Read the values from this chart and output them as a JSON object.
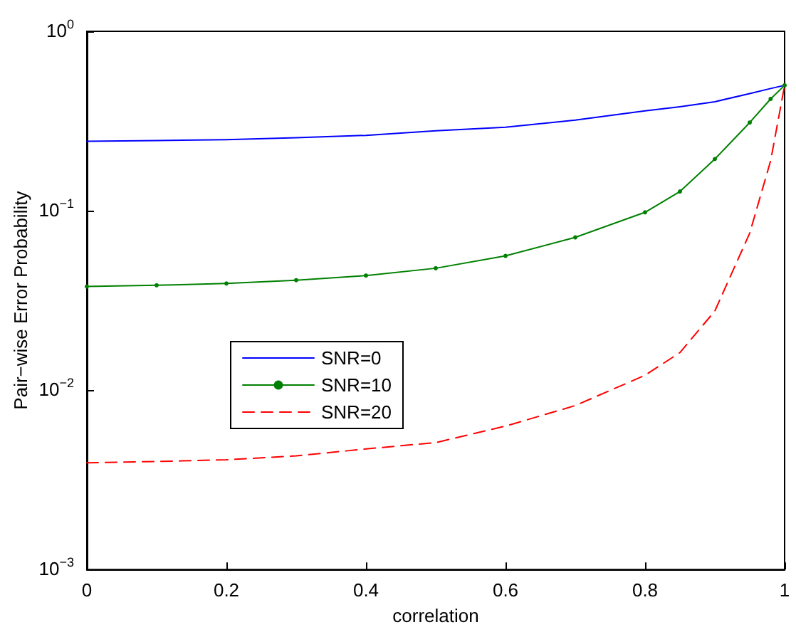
{
  "chart_data": {
    "type": "line",
    "xlabel": "correlation",
    "ylabel": "Pair−wise Error Probability",
    "x": [
      0,
      0.1,
      0.2,
      0.3,
      0.4,
      0.5,
      0.6,
      0.7,
      0.8,
      0.85,
      0.9,
      0.95,
      0.98,
      1
    ],
    "series": [
      {
        "name": "SNR=0",
        "color": "#0000ff",
        "line_style": "solid",
        "marker": "none",
        "values": [
          0.244,
          0.246,
          0.249,
          0.255,
          0.263,
          0.279,
          0.292,
          0.32,
          0.36,
          0.38,
          0.405,
          0.45,
          0.48,
          0.5
        ]
      },
      {
        "name": "SNR=10",
        "color": "#008000",
        "line_style": "solid",
        "marker": "circle",
        "values": [
          0.0378,
          0.0384,
          0.0393,
          0.041,
          0.0435,
          0.0478,
          0.056,
          0.071,
          0.098,
          0.128,
          0.194,
          0.31,
          0.42,
          0.5
        ]
      },
      {
        "name": "SNR=20",
        "color": "#ff0000",
        "line_style": "dashed",
        "marker": "none",
        "values": [
          0.00393,
          0.004,
          0.00409,
          0.0043,
          0.0047,
          0.0051,
          0.0063,
          0.0082,
          0.0121,
          0.0162,
          0.0276,
          0.075,
          0.19,
          0.5
        ]
      }
    ],
    "xlim": [
      0,
      1
    ],
    "xticks": [
      0,
      0.2,
      0.4,
      0.6,
      0.8,
      1
    ],
    "ylim": [
      0.001,
      1
    ],
    "log": true,
    "yticks": [
      {
        "value": 0.001,
        "label": "10$^{−3}$"
      },
      {
        "value": 0.01,
        "label": "10$^{−2}$"
      },
      {
        "value": 0.1,
        "label": "10$^{−1}$"
      },
      {
        "value": 1,
        "label": "10$^{0}$"
      }
    ],
    "grid": false,
    "legend": "center left"
  }
}
